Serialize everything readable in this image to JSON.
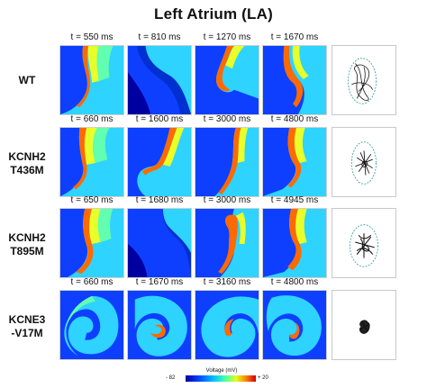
{
  "title": "Left Atrium (LA)",
  "rows": [
    {
      "label": "WT",
      "times": [
        "t = 550 ms",
        "t = 810 ms",
        "t = 1270 ms",
        "t = 1670 ms"
      ]
    },
    {
      "label": "KCNH2\nT436M",
      "times": [
        "t = 660 ms",
        "t = 1600 ms",
        "t = 3000 ms",
        "t = 4800 ms"
      ]
    },
    {
      "label": "KCNH2\nT895M",
      "times": [
        "t = 650 ms",
        "t = 1680 ms",
        "t = 3000 ms",
        "t = 4945 ms"
      ]
    },
    {
      "label": "KCNE3\n-V17M",
      "times": [
        "t = 660 ms",
        "t = 1670 ms",
        "t = 3160 ms",
        "t = 4800 ms"
      ]
    }
  ],
  "colorbar": {
    "title": "Voltage (mV)",
    "min_label": "- 82",
    "max_label": "+ 20",
    "min_value": -82,
    "max_value": 20,
    "colormap": [
      "#0000a0",
      "#0040ff",
      "#00c0ff",
      "#40ffb0",
      "#e0ff20",
      "#ff8000",
      "#d00000"
    ]
  }
}
